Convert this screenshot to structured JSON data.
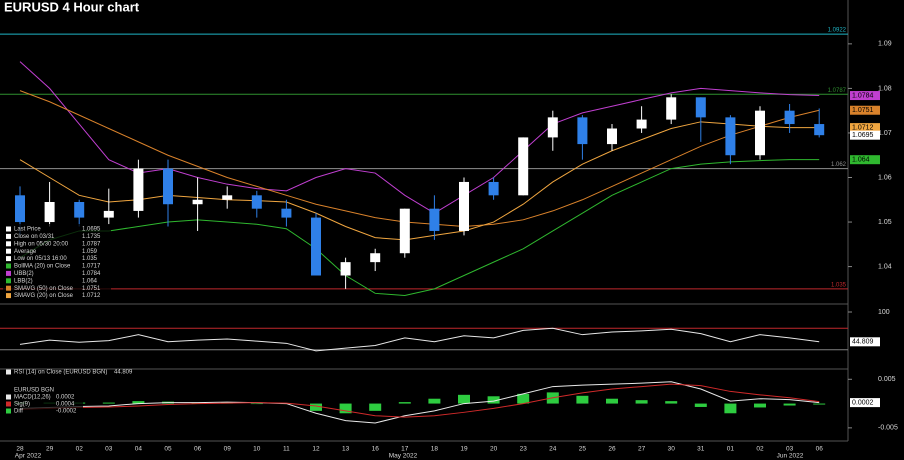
{
  "title": "EURUSD 4 Hour chart",
  "chart_data": [
    {
      "type": "candlestick",
      "categories": [
        "28",
        "29",
        "02",
        "03",
        "04",
        "05",
        "06",
        "09",
        "10",
        "11",
        "12",
        "13",
        "16",
        "17",
        "18",
        "19",
        "20",
        "23",
        "24",
        "25",
        "26",
        "27",
        "30",
        "31",
        "01",
        "02",
        "03",
        "06"
      ],
      "month_labels": [
        "Apr 2022",
        "May 2022",
        "Jun 2022"
      ],
      "open": [
        1.056,
        1.05,
        1.0545,
        1.051,
        1.0525,
        1.062,
        1.054,
        1.055,
        1.056,
        1.053,
        1.051,
        1.038,
        1.041,
        1.043,
        1.053,
        1.048,
        1.059,
        1.056,
        1.069,
        1.0735,
        1.0675,
        1.071,
        1.073,
        1.078,
        1.0735,
        1.065,
        1.075,
        1.072
      ],
      "high": [
        1.058,
        1.059,
        1.055,
        1.0575,
        1.064,
        1.064,
        1.06,
        1.058,
        1.057,
        1.055,
        1.052,
        1.042,
        1.044,
        1.053,
        1.056,
        1.06,
        1.06,
        1.069,
        1.075,
        1.074,
        1.072,
        1.076,
        1.0787,
        1.078,
        1.074,
        1.076,
        1.0765,
        1.0755
      ],
      "low": [
        1.047,
        1.049,
        1.049,
        1.0495,
        1.051,
        1.049,
        1.048,
        1.053,
        1.051,
        1.049,
        1.038,
        1.035,
        1.039,
        1.042,
        1.046,
        1.047,
        1.055,
        1.056,
        1.066,
        1.064,
        1.066,
        1.07,
        1.072,
        1.068,
        1.063,
        1.064,
        1.07,
        1.069
      ],
      "close": [
        1.05,
        1.0545,
        1.051,
        1.0525,
        1.062,
        1.054,
        1.055,
        1.056,
        1.053,
        1.051,
        1.038,
        1.041,
        1.043,
        1.053,
        1.048,
        1.059,
        1.056,
        1.069,
        1.0735,
        1.0675,
        1.071,
        1.073,
        1.078,
        1.0735,
        1.065,
        1.075,
        1.072,
        1.0695
      ],
      "up_color": "#ffffff",
      "down_color": "#2f80e8",
      "series": [
        {
          "name": "UBB(2)",
          "color": "#c03fd0",
          "values": [
            1.086,
            1.08,
            1.072,
            1.064,
            1.061,
            1.062,
            1.06,
            1.0585,
            1.0575,
            1.057,
            1.06,
            1.062,
            1.061,
            1.056,
            1.052,
            1.056,
            1.06,
            1.066,
            1.072,
            1.0745,
            1.076,
            1.0775,
            1.079,
            1.08,
            1.0795,
            1.079,
            1.0786,
            1.0784
          ]
        },
        {
          "name": "LBB(2)",
          "color": "#2fb82f",
          "values": [
            1.042,
            1.046,
            1.048,
            1.048,
            1.049,
            1.05,
            1.0505,
            1.05,
            1.0495,
            1.0485,
            1.044,
            1.038,
            1.034,
            1.0335,
            1.035,
            1.038,
            1.041,
            1.044,
            1.048,
            1.052,
            1.056,
            1.059,
            1.062,
            1.063,
            1.0635,
            1.0638,
            1.064,
            1.064
          ]
        },
        {
          "name": "SMAVG (50) on Close",
          "color": "#d9822b",
          "values": [
            1.0795,
            1.077,
            1.074,
            1.071,
            1.068,
            1.065,
            1.0625,
            1.06,
            1.058,
            1.056,
            1.054,
            1.0525,
            1.051,
            1.05,
            1.0495,
            1.049,
            1.0495,
            1.0505,
            1.0525,
            1.055,
            1.058,
            1.061,
            1.064,
            1.067,
            1.0695,
            1.0715,
            1.0735,
            1.0751
          ]
        },
        {
          "name": "SMAVG (20) on Close",
          "color": "#f0a640",
          "values": [
            1.064,
            1.06,
            1.056,
            1.0545,
            1.055,
            1.056,
            1.0555,
            1.055,
            1.0548,
            1.0545,
            1.052,
            1.049,
            1.0465,
            1.046,
            1.047,
            1.048,
            1.05,
            1.054,
            1.059,
            1.063,
            1.066,
            1.0685,
            1.071,
            1.0725,
            1.072,
            1.0715,
            1.0712,
            1.0712
          ]
        }
      ],
      "stats": [
        {
          "name": "Last Price",
          "value": 1.0695,
          "color": "#ffffff"
        },
        {
          "name": "Close on 03/31",
          "value": 1.1735,
          "color": "#ffffff"
        },
        {
          "name": "High on 05/30 20:00",
          "value": 1.0787,
          "color": "#ffffff"
        },
        {
          "name": "Average",
          "value": 1.059,
          "color": "#ffffff"
        },
        {
          "name": "Low on 05/13 16:00",
          "value": 1.035,
          "color": "#ffffff"
        },
        {
          "name": "BollMA (20) on Close",
          "value": 1.0717,
          "color": "#2fb82f"
        }
      ],
      "hlines": [
        {
          "value": 1.0922,
          "color": "#1fb5c5"
        },
        {
          "value": 1.0787,
          "color": "#2f8f2f"
        },
        {
          "value": 1.062,
          "color": "#909090"
        },
        {
          "value": 1.035,
          "color": "#c0282c"
        }
      ],
      "ylim": [
        1.0325,
        1.0985
      ],
      "yticks": [
        1.04,
        1.05,
        1.06,
        1.07,
        1.08,
        1.09
      ]
    },
    {
      "type": "line",
      "legend_label": "RSI (14) on Close (EURUSD BGN)",
      "series": [
        {
          "name": "RSI",
          "color": "#e8e8e8",
          "values": [
            40,
            48,
            44,
            47,
            58,
            45,
            48,
            50,
            46,
            42,
            28,
            33,
            38,
            52,
            45,
            56,
            52,
            66,
            70,
            58,
            63,
            65,
            68,
            60,
            45,
            58,
            52,
            44.809
          ]
        }
      ],
      "levels": [
        {
          "value": 70,
          "color": "#c0282c"
        },
        {
          "value": 30,
          "color": "#808080"
        }
      ],
      "ylim": [
        0,
        100
      ],
      "yticks": [
        100
      ]
    },
    {
      "type": "macd",
      "panel_title": "EURUSD BGN",
      "series": [
        {
          "name": "MACD(12,26)",
          "color": "#e8e8e8",
          "values": [
            -0.001,
            -0.0008,
            -0.0006,
            -0.0005,
            0.0,
            0.0002,
            0.0002,
            0.0003,
            0.0002,
            0.0,
            -0.002,
            -0.0035,
            -0.004,
            -0.0025,
            -0.0015,
            0.0,
            0.0005,
            0.002,
            0.0035,
            0.0038,
            0.004,
            0.0042,
            0.0045,
            0.003,
            0.0005,
            0.001,
            0.0008,
            0.0002
          ]
        },
        {
          "name": "Sig(9)",
          "color": "#d02a2a",
          "values": [
            -0.0012,
            -0.001,
            -0.0008,
            -0.0007,
            -0.0005,
            -0.0002,
            0.0,
            0.0001,
            0.0002,
            0.0001,
            -0.0005,
            -0.0015,
            -0.0025,
            -0.0028,
            -0.0025,
            -0.0018,
            -0.001,
            0.0,
            0.0012,
            0.0022,
            0.003,
            0.0035,
            0.004,
            0.0037,
            0.0025,
            0.0018,
            0.0012,
            0.0004
          ]
        },
        {
          "name": "Diff",
          "color": "#2ecc40",
          "values": [
            0.0002,
            0.0002,
            0.0002,
            0.0002,
            0.0005,
            0.0004,
            0.0002,
            0.0002,
            0.0,
            -0.0001,
            -0.0015,
            -0.002,
            -0.0015,
            0.0003,
            0.001,
            0.0018,
            0.0015,
            0.002,
            0.0023,
            0.0016,
            0.001,
            0.0007,
            0.0005,
            -0.0007,
            -0.002,
            -0.0008,
            -0.0004,
            -0.0002
          ]
        }
      ],
      "ylim": [
        -0.0075,
        0.0065
      ],
      "yticks": [
        0.005,
        -0.005
      ]
    }
  ]
}
